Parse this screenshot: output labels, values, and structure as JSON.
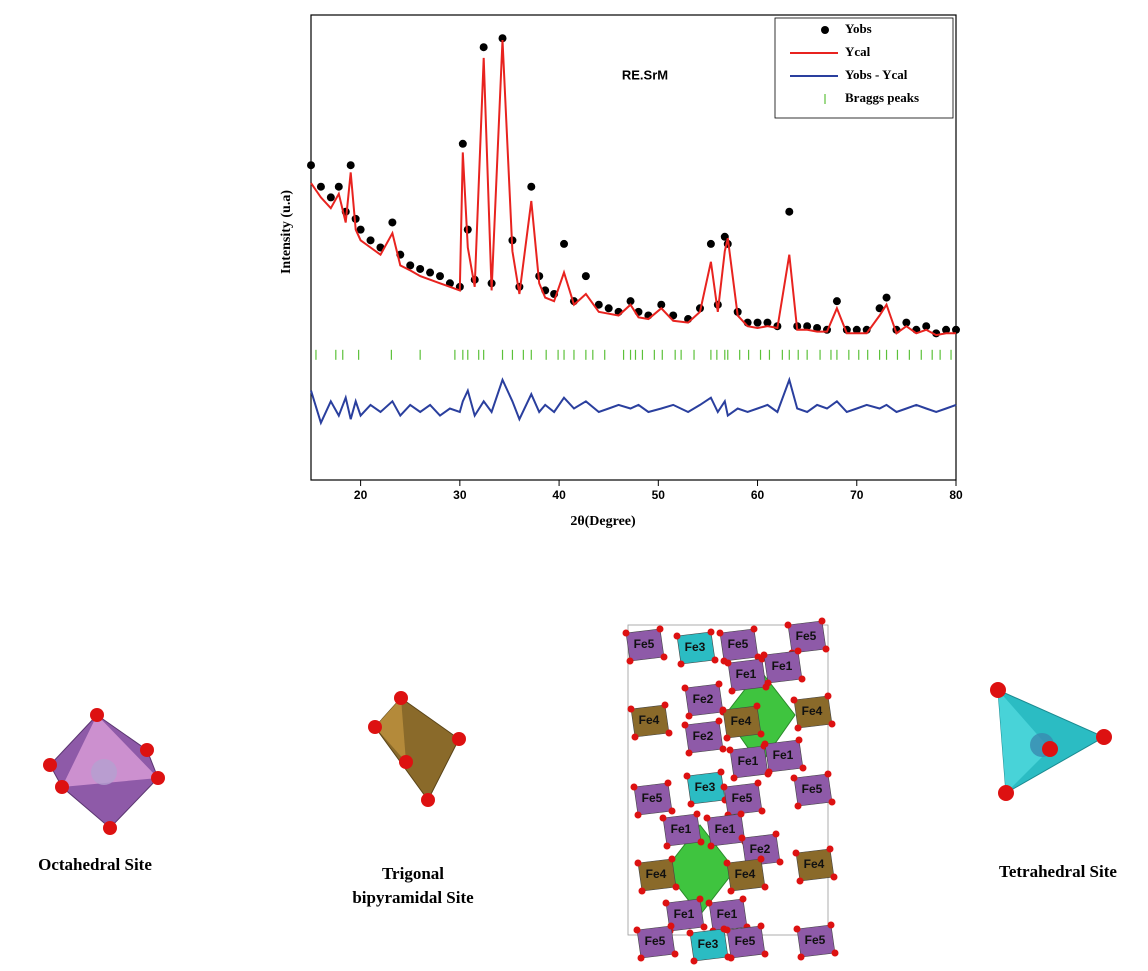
{
  "chart_data": {
    "type": "line",
    "annotation": "RE.SrM",
    "xlabel": "2θ(Degree)",
    "ylabel": "Intensity (u.a)",
    "xlim": [
      15,
      80
    ],
    "xticks": [
      20,
      30,
      40,
      50,
      60,
      70,
      80
    ],
    "ylim": [
      -30,
      100
    ],
    "legend": "top-right",
    "x": [
      15,
      16,
      17,
      17.8,
      18.5,
      19,
      19.5,
      20,
      21,
      22,
      23.2,
      24,
      25,
      26,
      27,
      28,
      29,
      30,
      30.3,
      30.8,
      31.5,
      32.4,
      33.2,
      34.3,
      35.3,
      36,
      37.2,
      38,
      38.6,
      39.5,
      40.5,
      41.5,
      42.7,
      44,
      45,
      46,
      47.2,
      48,
      49,
      50.3,
      51.5,
      53,
      54.2,
      55.3,
      56,
      56.7,
      57,
      58,
      59,
      60,
      61,
      62,
      63.2,
      64,
      65,
      66,
      67,
      68,
      69,
      70,
      71,
      72.3,
      73,
      74,
      75,
      76,
      77,
      78,
      79,
      80
    ],
    "series": [
      {
        "name": "Yobs",
        "type": "scatter",
        "color": "#000000",
        "values": [
          58,
          52,
          49,
          52,
          45,
          58,
          43,
          40,
          37,
          35,
          42,
          33,
          30,
          29,
          28,
          27,
          25,
          24,
          64,
          40,
          26,
          91,
          25,
          93.5,
          37,
          24,
          52,
          27,
          23,
          22,
          36,
          20,
          27,
          19,
          18,
          17,
          20,
          17,
          16,
          19,
          16,
          15,
          18,
          36,
          19,
          38,
          36,
          17,
          14,
          14,
          14,
          13,
          45,
          13,
          13,
          12.5,
          12,
          20,
          12,
          12,
          12,
          18,
          21,
          12,
          14,
          12,
          13,
          11,
          12,
          12
        ]
      },
      {
        "name": "Ycal",
        "type": "line",
        "color": "#e8231f",
        "values": [
          53,
          49,
          46,
          50,
          42,
          56,
          40,
          37,
          35,
          33,
          39,
          30,
          28.6,
          27,
          26,
          25,
          24,
          23,
          61.6,
          35,
          24,
          88,
          23,
          93,
          34,
          22,
          48,
          25,
          21,
          20,
          28,
          19,
          22,
          17,
          16.5,
          16,
          19,
          15.5,
          15,
          18,
          14.5,
          14,
          17,
          31,
          17,
          34,
          37.6,
          16,
          13,
          12.5,
          13,
          12.5,
          33,
          12,
          12,
          11.5,
          11.5,
          18,
          11,
          11,
          11,
          16,
          19,
          11,
          13,
          11,
          12,
          10.5,
          11,
          11
        ]
      },
      {
        "name": "Yobs - Ycal",
        "type": "line",
        "color": "#2a3f9e",
        "values": [
          -5,
          -14,
          -8,
          -12,
          -7,
          -13,
          -8,
          -12,
          -9,
          -11,
          -8,
          -12,
          -9,
          -11,
          -9,
          -12,
          -10,
          -11,
          -8,
          -5,
          -12,
          -8,
          -11,
          -2,
          -8,
          -13,
          -6,
          -11,
          -9,
          -11,
          -7,
          -10,
          -8,
          -11,
          -10,
          -9,
          -10,
          -9,
          -11,
          -10,
          -9,
          -11,
          -9,
          -7,
          -11,
          -8,
          -12,
          -10,
          -11,
          -10,
          -9,
          -11,
          -2,
          -10,
          -11,
          -9,
          -10,
          -8,
          -11,
          -10,
          -9,
          -10,
          -9,
          -11,
          -10,
          -9,
          -10,
          -11,
          -10,
          -9
        ]
      },
      {
        "name": "Braggs peaks",
        "type": "ticks",
        "color": "#5cc13a",
        "x": [
          15.5,
          17.5,
          18.2,
          19.8,
          23.1,
          26,
          29.5,
          30.3,
          30.8,
          31.9,
          32.4,
          34.3,
          35.3,
          36.4,
          37.2,
          38.7,
          39.9,
          40.5,
          41.5,
          42.7,
          43.4,
          44.6,
          46.5,
          47.2,
          47.7,
          48.4,
          49.6,
          50.4,
          51.7,
          52.3,
          53.6,
          55.3,
          55.9,
          56.7,
          57,
          58.2,
          59.1,
          60.3,
          61.2,
          62.5,
          63.2,
          64.1,
          65,
          66.3,
          67.4,
          68,
          69.2,
          70.2,
          71.1,
          72.3,
          73,
          74.1,
          75.3,
          76.5,
          77.6,
          78.4,
          79.5
        ],
        "values": [
          5,
          5,
          5,
          5,
          5,
          5,
          5,
          5,
          5,
          5,
          5,
          5,
          5,
          5,
          5,
          5,
          5,
          5,
          5,
          5,
          5,
          5,
          5,
          5,
          5,
          5,
          5,
          5,
          5,
          5,
          5,
          5,
          5,
          5,
          5,
          5,
          5,
          5,
          5,
          5,
          5,
          5,
          5,
          5,
          5,
          5,
          5,
          5,
          5,
          5,
          5,
          5,
          5,
          5,
          5,
          5,
          5
        ]
      }
    ]
  },
  "structures": {
    "octahedral": "Octahedral Site",
    "trigonal": [
      "Trigonal",
      "bipyramidal Site"
    ],
    "tetrahedral": "Tetrahedral Site",
    "crystal_labels": [
      "Fe5",
      "Fe3",
      "Fe5",
      "Fe5",
      "Fe1",
      "Fe1",
      "Fe2",
      "Fe4",
      "Fe4",
      "Fe4",
      "Fe2",
      "Fe1",
      "Fe1",
      "Fe3",
      "Fe5",
      "Fe5",
      "Fe5",
      "Fe1",
      "Fe1",
      "Fe2",
      "Fe4",
      "Fe4",
      "Fe4",
      "Fe1",
      "Fe1",
      "Fe5",
      "Fe3",
      "Fe5",
      "Fe5"
    ]
  }
}
